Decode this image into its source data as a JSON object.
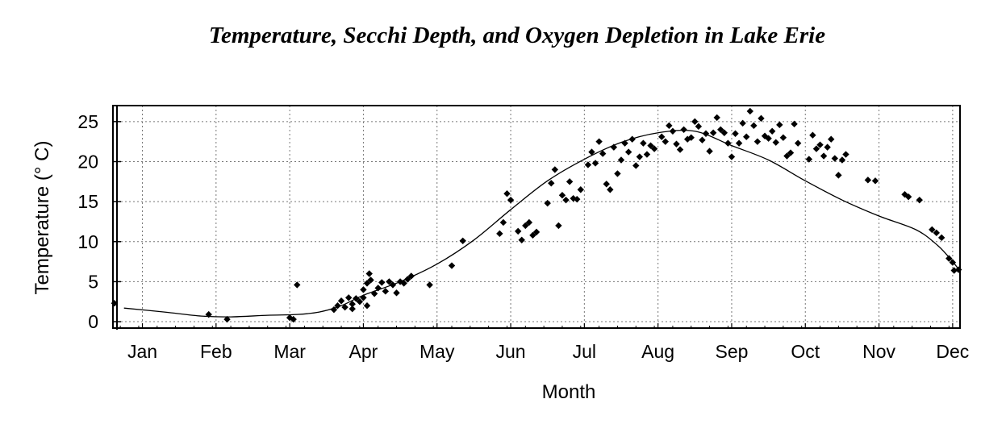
{
  "chart_data": {
    "type": "scatter",
    "title": "Temperature, Secchi Depth, and Oxygen Depletion in Lake Erie",
    "xlabel": "Month",
    "ylabel": "Temperature (° C)",
    "xlim": [
      0.6,
      12.1
    ],
    "ylim": [
      -0.8,
      27
    ],
    "x_ticks": [
      {
        "x": 1,
        "label": "Jan"
      },
      {
        "x": 2,
        "label": "Feb"
      },
      {
        "x": 3,
        "label": "Mar"
      },
      {
        "x": 4,
        "label": "Apr"
      },
      {
        "x": 5,
        "label": "May"
      },
      {
        "x": 6,
        "label": "Jun"
      },
      {
        "x": 7,
        "label": "Jul"
      },
      {
        "x": 8,
        "label": "Aug"
      },
      {
        "x": 9,
        "label": "Sep"
      },
      {
        "x": 10,
        "label": "Oct"
      },
      {
        "x": 11,
        "label": "Nov"
      },
      {
        "x": 12,
        "label": "Dec"
      }
    ],
    "y_ticks": [
      0,
      5,
      10,
      15,
      20,
      25
    ],
    "grid": true,
    "fit_curve": [
      [
        0.75,
        1.7
      ],
      [
        1.3,
        1.2
      ],
      [
        1.8,
        0.7
      ],
      [
        2.2,
        0.6
      ],
      [
        2.7,
        0.8
      ],
      [
        3.1,
        0.9
      ],
      [
        3.4,
        1.2
      ],
      [
        3.7,
        2.0
      ],
      [
        4.0,
        3.3
      ],
      [
        4.5,
        5.0
      ],
      [
        5.0,
        7.2
      ],
      [
        5.5,
        10.2
      ],
      [
        6.0,
        14.0
      ],
      [
        6.5,
        17.6
      ],
      [
        7.0,
        20.3
      ],
      [
        7.5,
        22.4
      ],
      [
        8.0,
        23.6
      ],
      [
        8.5,
        23.8
      ],
      [
        9.0,
        22.0
      ],
      [
        9.5,
        20.2
      ],
      [
        10.0,
        17.6
      ],
      [
        10.5,
        15.2
      ],
      [
        11.0,
        13.2
      ],
      [
        11.5,
        11.5
      ],
      [
        11.8,
        9.5
      ],
      [
        12.0,
        7.5
      ],
      [
        12.1,
        6.3
      ]
    ],
    "points": [
      [
        0.62,
        2.3
      ],
      [
        1.9,
        0.9
      ],
      [
        2.15,
        0.3
      ],
      [
        3.0,
        0.5
      ],
      [
        3.05,
        0.3
      ],
      [
        3.1,
        4.6
      ],
      [
        3.6,
        1.5
      ],
      [
        3.65,
        2.0
      ],
      [
        3.7,
        2.6
      ],
      [
        3.75,
        1.8
      ],
      [
        3.8,
        3.0
      ],
      [
        3.85,
        2.2
      ],
      [
        3.9,
        2.9
      ],
      [
        3.95,
        2.5
      ],
      [
        3.85,
        1.6
      ],
      [
        4.0,
        3.0
      ],
      [
        4.05,
        2.0
      ],
      [
        4.0,
        4.0
      ],
      [
        4.05,
        4.8
      ],
      [
        4.08,
        6.0
      ],
      [
        4.1,
        5.2
      ],
      [
        4.15,
        3.5
      ],
      [
        4.2,
        4.2
      ],
      [
        4.25,
        4.9
      ],
      [
        4.3,
        3.8
      ],
      [
        4.35,
        5.0
      ],
      [
        4.4,
        4.6
      ],
      [
        4.45,
        3.6
      ],
      [
        4.5,
        5.0
      ],
      [
        4.55,
        4.8
      ],
      [
        4.6,
        5.3
      ],
      [
        4.65,
        5.7
      ],
      [
        4.9,
        4.6
      ],
      [
        5.2,
        7.0
      ],
      [
        5.35,
        10.1
      ],
      [
        5.85,
        11.0
      ],
      [
        5.9,
        12.4
      ],
      [
        5.95,
        16.0
      ],
      [
        6.0,
        15.2
      ],
      [
        6.1,
        11.3
      ],
      [
        6.15,
        10.2
      ],
      [
        6.2,
        12.0
      ],
      [
        6.25,
        12.4
      ],
      [
        6.3,
        10.8
      ],
      [
        6.35,
        11.2
      ],
      [
        6.5,
        14.8
      ],
      [
        6.55,
        17.3
      ],
      [
        6.6,
        19.0
      ],
      [
        6.65,
        12.0
      ],
      [
        6.7,
        15.8
      ],
      [
        6.75,
        15.2
      ],
      [
        6.8,
        17.5
      ],
      [
        6.85,
        15.4
      ],
      [
        6.9,
        15.3
      ],
      [
        6.95,
        16.5
      ],
      [
        7.05,
        19.6
      ],
      [
        7.1,
        21.2
      ],
      [
        7.15,
        19.8
      ],
      [
        7.2,
        22.5
      ],
      [
        7.25,
        21.0
      ],
      [
        7.3,
        17.2
      ],
      [
        7.35,
        16.5
      ],
      [
        7.4,
        21.8
      ],
      [
        7.45,
        18.5
      ],
      [
        7.5,
        20.2
      ],
      [
        7.55,
        22.3
      ],
      [
        7.6,
        21.2
      ],
      [
        7.65,
        22.8
      ],
      [
        7.7,
        19.5
      ],
      [
        7.75,
        20.6
      ],
      [
        7.8,
        22.3
      ],
      [
        7.85,
        20.9
      ],
      [
        7.9,
        22.0
      ],
      [
        7.95,
        21.6
      ],
      [
        8.05,
        23.1
      ],
      [
        8.1,
        22.5
      ],
      [
        8.15,
        24.5
      ],
      [
        8.2,
        23.8
      ],
      [
        8.25,
        22.2
      ],
      [
        8.3,
        21.5
      ],
      [
        8.35,
        24.0
      ],
      [
        8.4,
        22.8
      ],
      [
        8.45,
        23.0
      ],
      [
        8.5,
        25.0
      ],
      [
        8.55,
        24.4
      ],
      [
        8.6,
        22.7
      ],
      [
        8.65,
        23.5
      ],
      [
        8.7,
        21.3
      ],
      [
        8.75,
        23.6
      ],
      [
        8.8,
        25.5
      ],
      [
        8.85,
        24.0
      ],
      [
        8.9,
        23.6
      ],
      [
        8.95,
        22.3
      ],
      [
        9.0,
        20.6
      ],
      [
        9.05,
        23.5
      ],
      [
        9.1,
        22.3
      ],
      [
        9.15,
        24.8
      ],
      [
        9.2,
        23.1
      ],
      [
        9.25,
        26.3
      ],
      [
        9.3,
        24.5
      ],
      [
        9.35,
        22.5
      ],
      [
        9.4,
        25.4
      ],
      [
        9.45,
        23.2
      ],
      [
        9.5,
        22.9
      ],
      [
        9.55,
        23.8
      ],
      [
        9.6,
        22.4
      ],
      [
        9.65,
        24.6
      ],
      [
        9.7,
        23.0
      ],
      [
        9.75,
        20.7
      ],
      [
        9.8,
        21.1
      ],
      [
        9.85,
        24.7
      ],
      [
        9.9,
        22.3
      ],
      [
        10.05,
        20.3
      ],
      [
        10.1,
        23.3
      ],
      [
        10.15,
        21.6
      ],
      [
        10.2,
        22.1
      ],
      [
        10.25,
        20.7
      ],
      [
        10.3,
        21.8
      ],
      [
        10.35,
        22.8
      ],
      [
        10.4,
        20.4
      ],
      [
        10.45,
        18.3
      ],
      [
        10.5,
        20.2
      ],
      [
        10.55,
        20.9
      ],
      [
        10.85,
        17.7
      ],
      [
        10.95,
        17.6
      ],
      [
        11.35,
        15.9
      ],
      [
        11.4,
        15.6
      ],
      [
        11.55,
        15.2
      ],
      [
        11.72,
        11.5
      ],
      [
        11.78,
        11.1
      ],
      [
        11.85,
        10.5
      ],
      [
        11.95,
        7.9
      ],
      [
        12.0,
        7.4
      ],
      [
        12.02,
        6.4
      ],
      [
        12.08,
        6.5
      ]
    ]
  }
}
